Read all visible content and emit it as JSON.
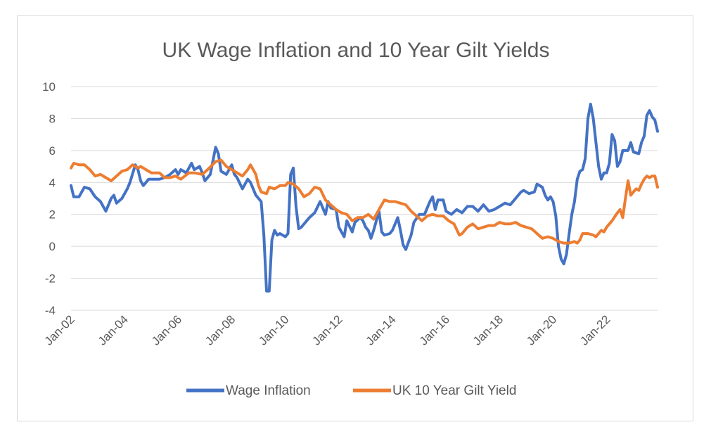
{
  "chart_data": {
    "type": "line",
    "title": "UK Wage Inflation and 10 Year Gilt Yields",
    "xlabel": "",
    "ylabel": "",
    "ylim": [
      -4,
      10
    ],
    "yticks": [
      10,
      8,
      6,
      4,
      2,
      0,
      -2,
      -4
    ],
    "xlim": [
      2002.0,
      2023.9
    ],
    "xticks": [
      {
        "label": "Jan-02",
        "value": 2002
      },
      {
        "label": "Jan-04",
        "value": 2004
      },
      {
        "label": "Jan-06",
        "value": 2006
      },
      {
        "label": "Jan-08",
        "value": 2008
      },
      {
        "label": "Jan-10",
        "value": 2010
      },
      {
        "label": "Jan-12",
        "value": 2012
      },
      {
        "label": "Jan-14",
        "value": 2014
      },
      {
        "label": "Jan-16",
        "value": 2016
      },
      {
        "label": "Jan-18",
        "value": 2018
      },
      {
        "label": "Jan-20",
        "value": 2020
      },
      {
        "label": "Jan-22",
        "value": 2022
      }
    ],
    "grid": true,
    "legend": "bottom",
    "series": [
      {
        "name": "Wage Inflation",
        "color": "#4472c4",
        "points": [
          [
            2002.0,
            3.8
          ],
          [
            2002.1,
            3.1
          ],
          [
            2002.3,
            3.1
          ],
          [
            2002.5,
            3.7
          ],
          [
            2002.7,
            3.6
          ],
          [
            2002.9,
            3.1
          ],
          [
            2003.1,
            2.8
          ],
          [
            2003.3,
            2.2
          ],
          [
            2003.5,
            3.0
          ],
          [
            2003.6,
            3.2
          ],
          [
            2003.7,
            2.7
          ],
          [
            2003.9,
            3.0
          ],
          [
            2004.1,
            3.6
          ],
          [
            2004.2,
            4.0
          ],
          [
            2004.4,
            5.1
          ],
          [
            2004.5,
            4.8
          ],
          [
            2004.6,
            4.1
          ],
          [
            2004.7,
            3.8
          ],
          [
            2004.9,
            4.2
          ],
          [
            2005.1,
            4.2
          ],
          [
            2005.3,
            4.2
          ],
          [
            2005.5,
            4.3
          ],
          [
            2005.7,
            4.5
          ],
          [
            2005.9,
            4.8
          ],
          [
            2006.0,
            4.5
          ],
          [
            2006.1,
            4.8
          ],
          [
            2006.3,
            4.6
          ],
          [
            2006.5,
            5.2
          ],
          [
            2006.6,
            4.8
          ],
          [
            2006.8,
            5.0
          ],
          [
            2006.9,
            4.6
          ],
          [
            2007.0,
            4.1
          ],
          [
            2007.2,
            4.5
          ],
          [
            2007.4,
            6.2
          ],
          [
            2007.5,
            5.8
          ],
          [
            2007.6,
            4.7
          ],
          [
            2007.8,
            4.5
          ],
          [
            2008.0,
            5.1
          ],
          [
            2008.1,
            4.5
          ],
          [
            2008.2,
            4.3
          ],
          [
            2008.4,
            3.6
          ],
          [
            2008.6,
            4.2
          ],
          [
            2008.7,
            4.0
          ],
          [
            2008.9,
            3.2
          ],
          [
            2009.0,
            3.0
          ],
          [
            2009.1,
            2.8
          ],
          [
            2009.2,
            0.7
          ],
          [
            2009.3,
            -2.8
          ],
          [
            2009.4,
            -2.8
          ],
          [
            2009.5,
            0.4
          ],
          [
            2009.6,
            1.0
          ],
          [
            2009.7,
            0.7
          ],
          [
            2009.8,
            0.8
          ],
          [
            2009.9,
            0.7
          ],
          [
            2010.0,
            0.6
          ],
          [
            2010.1,
            0.8
          ],
          [
            2010.2,
            4.5
          ],
          [
            2010.3,
            4.9
          ],
          [
            2010.4,
            2.5
          ],
          [
            2010.5,
            1.1
          ],
          [
            2010.6,
            1.2
          ],
          [
            2010.8,
            1.6
          ],
          [
            2010.9,
            1.8
          ],
          [
            2011.1,
            2.1
          ],
          [
            2011.3,
            2.8
          ],
          [
            2011.5,
            2.0
          ],
          [
            2011.6,
            2.8
          ],
          [
            2011.7,
            2.4
          ],
          [
            2011.9,
            2.3
          ],
          [
            2012.0,
            1.2
          ],
          [
            2012.2,
            0.6
          ],
          [
            2012.3,
            1.6
          ],
          [
            2012.5,
            0.9
          ],
          [
            2012.6,
            1.5
          ],
          [
            2012.8,
            1.8
          ],
          [
            2012.9,
            1.6
          ],
          [
            2013.0,
            1.2
          ],
          [
            2013.1,
            1.0
          ],
          [
            2013.2,
            0.5
          ],
          [
            2013.3,
            1.0
          ],
          [
            2013.5,
            2.2
          ],
          [
            2013.6,
            0.9
          ],
          [
            2013.7,
            0.7
          ],
          [
            2013.9,
            0.8
          ],
          [
            2014.0,
            1.0
          ],
          [
            2014.2,
            1.8
          ],
          [
            2014.3,
            1.0
          ],
          [
            2014.4,
            0.1
          ],
          [
            2014.5,
            -0.2
          ],
          [
            2014.7,
            0.7
          ],
          [
            2014.8,
            1.5
          ],
          [
            2015.0,
            2.0
          ],
          [
            2015.2,
            2.0
          ],
          [
            2015.4,
            2.8
          ],
          [
            2015.5,
            3.1
          ],
          [
            2015.6,
            2.3
          ],
          [
            2015.7,
            2.9
          ],
          [
            2015.9,
            2.9
          ],
          [
            2016.0,
            2.2
          ],
          [
            2016.2,
            2.0
          ],
          [
            2016.4,
            2.3
          ],
          [
            2016.6,
            2.1
          ],
          [
            2016.8,
            2.5
          ],
          [
            2017.0,
            2.5
          ],
          [
            2017.2,
            2.2
          ],
          [
            2017.4,
            2.6
          ],
          [
            2017.6,
            2.2
          ],
          [
            2017.8,
            2.3
          ],
          [
            2018.0,
            2.5
          ],
          [
            2018.2,
            2.7
          ],
          [
            2018.4,
            2.6
          ],
          [
            2018.6,
            3.0
          ],
          [
            2018.8,
            3.4
          ],
          [
            2018.9,
            3.5
          ],
          [
            2019.1,
            3.3
          ],
          [
            2019.3,
            3.4
          ],
          [
            2019.4,
            3.9
          ],
          [
            2019.6,
            3.7
          ],
          [
            2019.7,
            3.2
          ],
          [
            2019.8,
            2.9
          ],
          [
            2019.9,
            3.1
          ],
          [
            2020.0,
            2.8
          ],
          [
            2020.1,
            1.9
          ],
          [
            2020.2,
            0.0
          ],
          [
            2020.3,
            -0.8
          ],
          [
            2020.4,
            -1.1
          ],
          [
            2020.5,
            -0.5
          ],
          [
            2020.6,
            0.8
          ],
          [
            2020.7,
            2.0
          ],
          [
            2020.8,
            2.8
          ],
          [
            2020.9,
            4.2
          ],
          [
            2021.0,
            4.7
          ],
          [
            2021.1,
            4.8
          ],
          [
            2021.2,
            5.5
          ],
          [
            2021.3,
            8.0
          ],
          [
            2021.4,
            8.9
          ],
          [
            2021.5,
            8.0
          ],
          [
            2021.6,
            6.5
          ],
          [
            2021.7,
            5.0
          ],
          [
            2021.8,
            4.2
          ],
          [
            2021.9,
            4.6
          ],
          [
            2022.0,
            4.6
          ],
          [
            2022.1,
            5.2
          ],
          [
            2022.2,
            7.0
          ],
          [
            2022.3,
            6.6
          ],
          [
            2022.4,
            5.0
          ],
          [
            2022.5,
            5.3
          ],
          [
            2022.6,
            6.0
          ],
          [
            2022.8,
            6.0
          ],
          [
            2022.9,
            6.5
          ],
          [
            2023.0,
            5.9
          ],
          [
            2023.2,
            5.8
          ],
          [
            2023.3,
            6.5
          ],
          [
            2023.4,
            6.9
          ],
          [
            2023.5,
            8.2
          ],
          [
            2023.6,
            8.5
          ],
          [
            2023.7,
            8.1
          ],
          [
            2023.8,
            7.9
          ],
          [
            2023.9,
            7.2
          ]
        ]
      },
      {
        "name": "UK 10 Year Gilt Yield",
        "color": "#ed7d31",
        "points": [
          [
            2002.0,
            4.9
          ],
          [
            2002.1,
            5.2
          ],
          [
            2002.3,
            5.1
          ],
          [
            2002.5,
            5.1
          ],
          [
            2002.7,
            4.8
          ],
          [
            2002.9,
            4.4
          ],
          [
            2003.1,
            4.5
          ],
          [
            2003.3,
            4.3
          ],
          [
            2003.5,
            4.1
          ],
          [
            2003.7,
            4.4
          ],
          [
            2003.9,
            4.7
          ],
          [
            2004.1,
            4.8
          ],
          [
            2004.3,
            5.1
          ],
          [
            2004.5,
            4.9
          ],
          [
            2004.6,
            5.0
          ],
          [
            2004.8,
            4.8
          ],
          [
            2005.0,
            4.6
          ],
          [
            2005.3,
            4.6
          ],
          [
            2005.5,
            4.3
          ],
          [
            2005.7,
            4.3
          ],
          [
            2005.9,
            4.4
          ],
          [
            2006.1,
            4.2
          ],
          [
            2006.4,
            4.6
          ],
          [
            2006.6,
            4.6
          ],
          [
            2006.9,
            4.5
          ],
          [
            2007.1,
            4.8
          ],
          [
            2007.4,
            5.3
          ],
          [
            2007.6,
            5.4
          ],
          [
            2007.8,
            5.0
          ],
          [
            2008.0,
            4.8
          ],
          [
            2008.2,
            4.6
          ],
          [
            2008.4,
            4.4
          ],
          [
            2008.6,
            4.8
          ],
          [
            2008.7,
            5.1
          ],
          [
            2008.9,
            4.5
          ],
          [
            2009.0,
            3.8
          ],
          [
            2009.1,
            3.4
          ],
          [
            2009.3,
            3.3
          ],
          [
            2009.4,
            3.7
          ],
          [
            2009.6,
            3.6
          ],
          [
            2009.8,
            3.8
          ],
          [
            2010.0,
            3.8
          ],
          [
            2010.1,
            4.0
          ],
          [
            2010.3,
            3.9
          ],
          [
            2010.5,
            3.6
          ],
          [
            2010.7,
            3.1
          ],
          [
            2010.9,
            3.3
          ],
          [
            2011.1,
            3.7
          ],
          [
            2011.3,
            3.6
          ],
          [
            2011.5,
            2.9
          ],
          [
            2011.7,
            2.6
          ],
          [
            2011.9,
            2.3
          ],
          [
            2012.1,
            2.1
          ],
          [
            2012.3,
            2.0
          ],
          [
            2012.5,
            1.6
          ],
          [
            2012.7,
            1.8
          ],
          [
            2012.9,
            1.8
          ],
          [
            2013.1,
            2.0
          ],
          [
            2013.3,
            1.7
          ],
          [
            2013.5,
            2.3
          ],
          [
            2013.7,
            2.9
          ],
          [
            2013.9,
            2.8
          ],
          [
            2014.1,
            2.8
          ],
          [
            2014.3,
            2.7
          ],
          [
            2014.5,
            2.6
          ],
          [
            2014.7,
            2.2
          ],
          [
            2014.9,
            1.9
          ],
          [
            2015.1,
            1.6
          ],
          [
            2015.3,
            1.9
          ],
          [
            2015.5,
            2.0
          ],
          [
            2015.7,
            1.9
          ],
          [
            2015.9,
            1.9
          ],
          [
            2016.1,
            1.6
          ],
          [
            2016.3,
            1.4
          ],
          [
            2016.5,
            0.7
          ],
          [
            2016.6,
            0.8
          ],
          [
            2016.8,
            1.2
          ],
          [
            2017.0,
            1.4
          ],
          [
            2017.2,
            1.1
          ],
          [
            2017.4,
            1.2
          ],
          [
            2017.6,
            1.3
          ],
          [
            2017.8,
            1.3
          ],
          [
            2018.0,
            1.5
          ],
          [
            2018.2,
            1.4
          ],
          [
            2018.4,
            1.4
          ],
          [
            2018.6,
            1.5
          ],
          [
            2018.8,
            1.3
          ],
          [
            2019.0,
            1.2
          ],
          [
            2019.2,
            1.1
          ],
          [
            2019.4,
            0.8
          ],
          [
            2019.6,
            0.5
          ],
          [
            2019.8,
            0.6
          ],
          [
            2020.0,
            0.5
          ],
          [
            2020.2,
            0.3
          ],
          [
            2020.4,
            0.2
          ],
          [
            2020.6,
            0.2
          ],
          [
            2020.8,
            0.3
          ],
          [
            2020.9,
            0.2
          ],
          [
            2021.0,
            0.4
          ],
          [
            2021.1,
            0.8
          ],
          [
            2021.3,
            0.8
          ],
          [
            2021.5,
            0.7
          ],
          [
            2021.6,
            0.6
          ],
          [
            2021.8,
            1.0
          ],
          [
            2021.9,
            0.9
          ],
          [
            2022.0,
            1.2
          ],
          [
            2022.2,
            1.6
          ],
          [
            2022.4,
            2.1
          ],
          [
            2022.5,
            2.3
          ],
          [
            2022.6,
            1.8
          ],
          [
            2022.7,
            3.0
          ],
          [
            2022.8,
            4.1
          ],
          [
            2022.9,
            3.2
          ],
          [
            2023.0,
            3.4
          ],
          [
            2023.1,
            3.6
          ],
          [
            2023.2,
            3.5
          ],
          [
            2023.3,
            3.9
          ],
          [
            2023.4,
            4.2
          ],
          [
            2023.5,
            4.4
          ],
          [
            2023.6,
            4.3
          ],
          [
            2023.7,
            4.4
          ],
          [
            2023.8,
            4.4
          ],
          [
            2023.9,
            3.7
          ]
        ]
      }
    ]
  }
}
